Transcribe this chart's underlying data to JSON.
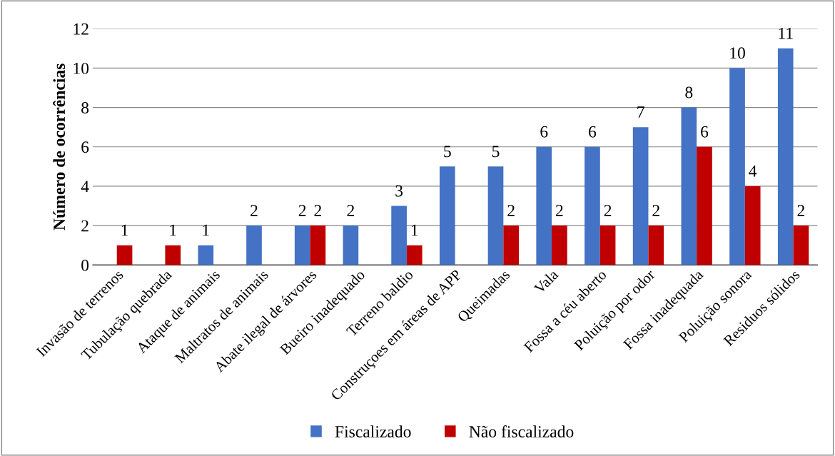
{
  "chart_data": {
    "type": "bar",
    "ylabel": "Número de ocorrências",
    "categories": [
      "Invasão de terrenos",
      "Tubulação quebrada",
      "Ataque de animais",
      "Maltratos de animais",
      "Abate ilegal de árvores",
      "Bueiro inadequado",
      "Terreno baldio",
      "Construçoes em áreas de APP",
      "Queimadas",
      "Vala",
      "Fossa a céu aberto",
      "Poluição por odor",
      "Fossa inadequada",
      "Poluição sonora",
      "Residuos sólidos"
    ],
    "series": [
      {
        "name": "Fiscalizado",
        "color": "#4472c4",
        "values": [
          null,
          null,
          1,
          2,
          2,
          2,
          3,
          5,
          5,
          6,
          6,
          7,
          8,
          10,
          11
        ]
      },
      {
        "name": "Não fiscalizado",
        "color": "#c00000",
        "values": [
          1,
          1,
          null,
          null,
          2,
          null,
          1,
          null,
          2,
          2,
          2,
          2,
          6,
          4,
          2
        ]
      }
    ],
    "ylim": [
      0,
      12
    ],
    "yticks": [
      0,
      2,
      4,
      6,
      8,
      10,
      12
    ],
    "grid": "y",
    "legend": "bottom",
    "data_labels": true
  }
}
